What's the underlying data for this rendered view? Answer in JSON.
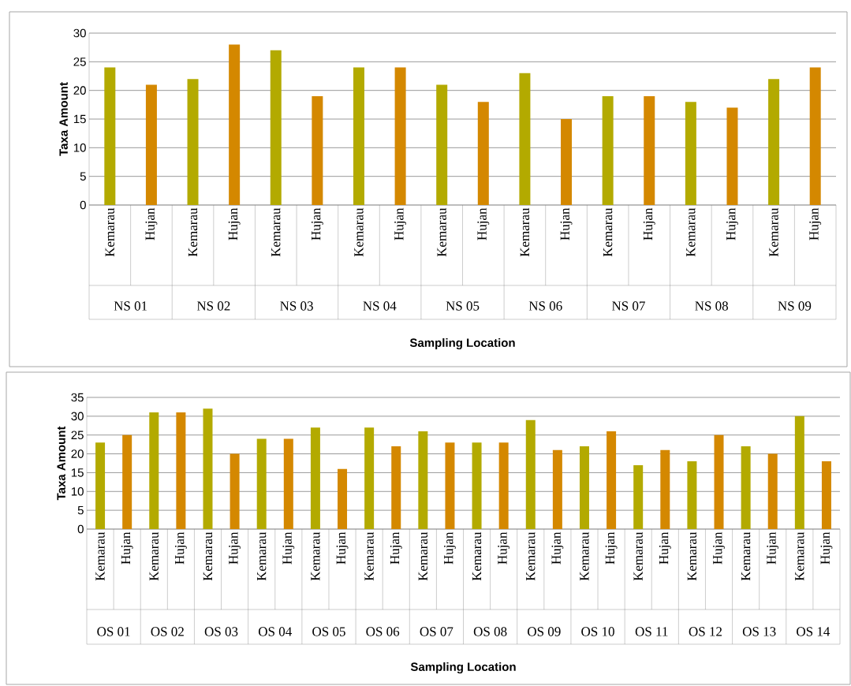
{
  "chart_data": [
    {
      "type": "bar",
      "xlabel": "Sampling Location",
      "ylabel": "Taxa Amount",
      "categories": [
        "Kemarau",
        "Hujan",
        "Kemarau",
        "Hujan",
        "Kemarau",
        "Hujan",
        "Kemarau",
        "Hujan",
        "Kemarau",
        "Hujan",
        "Kemarau",
        "Hujan",
        "Kemarau",
        "Hujan",
        "Kemarau",
        "Hujan",
        "Kemarau",
        "Hujan"
      ],
      "values": [
        24,
        21,
        22,
        28,
        27,
        19,
        24,
        24,
        21,
        18,
        23,
        15,
        19,
        19,
        18,
        17,
        22,
        24
      ],
      "colors": [
        "#b3aa00",
        "#d48800",
        "#b3aa00",
        "#d48800",
        "#b3aa00",
        "#d48800",
        "#b3aa00",
        "#d48800",
        "#b3aa00",
        "#d48800",
        "#b3aa00",
        "#d48800",
        "#b3aa00",
        "#d48800",
        "#b3aa00",
        "#d48800",
        "#b3aa00",
        "#d48800"
      ],
      "ylim": [
        0,
        30
      ],
      "yticks": [
        0,
        5,
        10,
        15,
        20,
        25,
        30
      ],
      "grid": "y",
      "annotations": [
        "NS 01",
        "NS 02",
        "NS 03",
        "NS 04",
        "NS 05",
        "NS 06",
        "NS 07",
        "NS 08",
        "NS 09"
      ]
    },
    {
      "type": "bar",
      "xlabel": "Sampling Location",
      "ylabel": "Taxa Amount",
      "categories": [
        "Kemarau",
        "Hujan",
        "Kemarau",
        "Hujan",
        "Kemarau",
        "Hujan",
        "Kemarau",
        "Hujan",
        "Kemarau",
        "Hujan",
        "Kemarau",
        "Hujan",
        "Kemarau",
        "Hujan",
        "Kemarau",
        "Hujan",
        "Kemarau",
        "Hujan",
        "Kemarau",
        "Hujan",
        "Kemarau",
        "Hujan",
        "Kemarau",
        "Hujan",
        "Kemarau",
        "Hujan",
        "Kemarau",
        "Hujan"
      ],
      "values": [
        23,
        25,
        31,
        31,
        32,
        20,
        24,
        24,
        27,
        16,
        27,
        22,
        26,
        23,
        23,
        23,
        29,
        21,
        22,
        26,
        17,
        21,
        18,
        25,
        22,
        20,
        30,
        18
      ],
      "colors": [
        "#b3aa00",
        "#d48800",
        "#b3aa00",
        "#d48800",
        "#b3aa00",
        "#d48800",
        "#b3aa00",
        "#d48800",
        "#b3aa00",
        "#d48800",
        "#b3aa00",
        "#d48800",
        "#b3aa00",
        "#d48800",
        "#b3aa00",
        "#d48800",
        "#b3aa00",
        "#d48800",
        "#b3aa00",
        "#d48800",
        "#b3aa00",
        "#d48800",
        "#b3aa00",
        "#d48800",
        "#b3aa00",
        "#d48800",
        "#b3aa00",
        "#d48800"
      ],
      "ylim": [
        0,
        35
      ],
      "yticks": [
        0,
        5,
        10,
        15,
        20,
        25,
        30,
        35
      ],
      "grid": "y",
      "annotations": [
        "OS 01",
        "OS 02",
        "OS 03",
        "OS 04",
        "OS 05",
        "OS 06",
        "OS 07",
        "OS 08",
        "OS 09",
        "OS 10",
        "OS 11",
        "OS 12",
        "OS 13",
        "OS 14"
      ]
    }
  ]
}
